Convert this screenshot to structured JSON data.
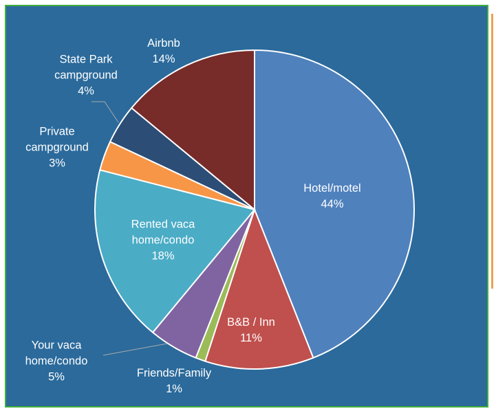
{
  "chart_data": {
    "type": "pie",
    "categories": [
      "Hotel/motel",
      "B&B / Inn",
      "Friends/Family",
      "Your vaca home/condo",
      "Rented vaca home/condo",
      "Private campground",
      "State Park campground",
      "Airbnb"
    ],
    "values": [
      44,
      11,
      1,
      5,
      18,
      3,
      4,
      14
    ],
    "value_labels": [
      "44%",
      "11%",
      "1%",
      "5%",
      "18%",
      "3%",
      "4%",
      "14%"
    ],
    "colors": [
      "#4F81BD",
      "#C0504D",
      "#9BBB59",
      "#8064A2",
      "#4BACC6",
      "#F79646",
      "#2C4D75",
      "#772C2A"
    ]
  }
}
